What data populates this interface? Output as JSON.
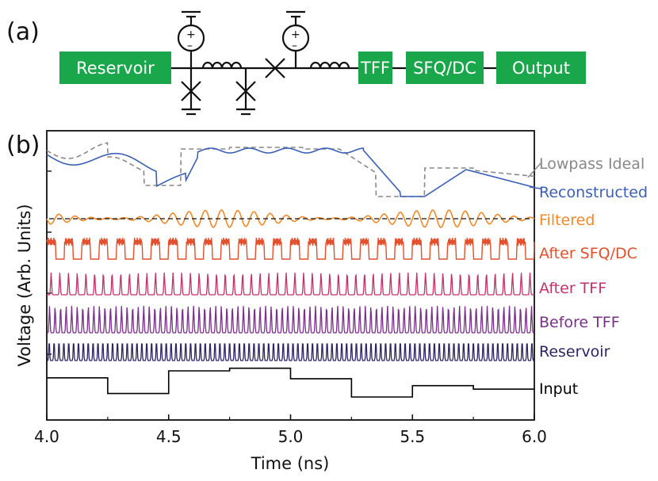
{
  "panel_a": {
    "label": "(a)",
    "blocks": [
      "Reservoir",
      "TFF",
      "SFQ/DC",
      "Output"
    ],
    "block_color": "#1aa64a",
    "source_plus": "+",
    "source_minus": "–"
  },
  "panel_b": {
    "label": "(b)"
  },
  "chart_data": {
    "type": "line",
    "xlabel": "Time (ns)",
    "ylabel": "Voltage (Arb. Units)",
    "xlim": [
      4.0,
      6.0
    ],
    "xticks": [
      "4.0",
      "4.5",
      "5.0",
      "5.5",
      "6.0"
    ],
    "grid": false,
    "series": [
      {
        "name": "Lowpass Ideal",
        "color": "#888888",
        "style": "dashed"
      },
      {
        "name": "Reconstructed",
        "color": "#3a5fb5",
        "style": "solid"
      },
      {
        "name": "Filtered",
        "color": "#f0892a",
        "style": "solid"
      },
      {
        "name": "After SFQ/DC",
        "color": "#e2502d",
        "style": "solid"
      },
      {
        "name": "After TFF",
        "color": "#c2336b",
        "style": "solid"
      },
      {
        "name": "Before TFF",
        "color": "#7a2f8a",
        "style": "solid"
      },
      {
        "name": "Reservoir",
        "color": "#2e2563",
        "style": "solid"
      },
      {
        "name": "Input",
        "color": "#000000",
        "style": "step",
        "x": [
          4.0,
          4.25,
          4.5,
          4.75,
          5.0,
          5.25,
          5.5,
          5.75,
          6.0
        ],
        "levels": [
          0.6,
          -0.3,
          1.0,
          1.15,
          0.55,
          -0.5,
          0.15,
          -0.05,
          -0.05
        ]
      }
    ]
  }
}
